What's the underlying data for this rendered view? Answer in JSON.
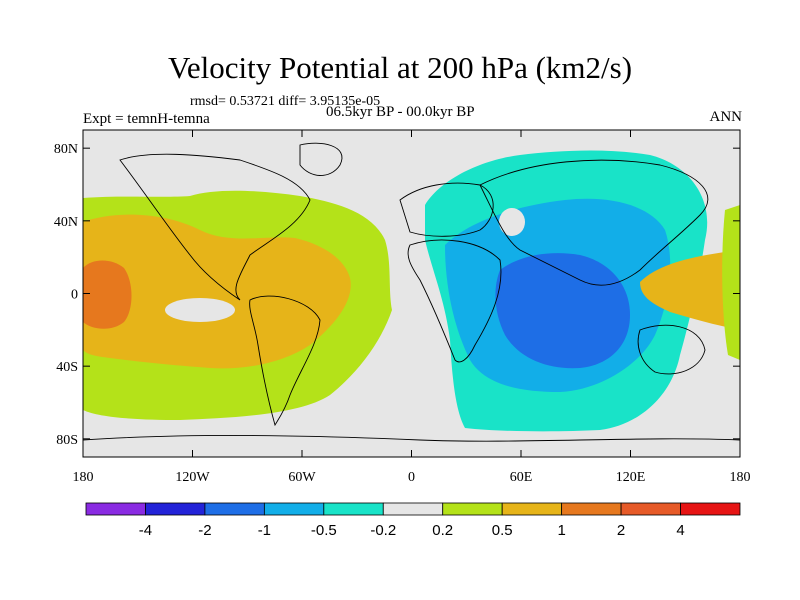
{
  "chart_data": {
    "type": "heatmap",
    "projection": "cylindrical-equidistant global map",
    "title": "Velocity Potential at 200 hPa (km2/s)",
    "subtitle_stats": "rmsd= 0.53721 diff= 3.95135e-05",
    "left_string": "Expt = temnH-temna",
    "center_string": "06.5kyr BP - 00.0kyr BP",
    "right_string": "ANN",
    "lon_range": [
      -180,
      180
    ],
    "lat_range": [
      -90,
      90
    ],
    "x_ticks": [
      {
        "lon": -180,
        "label": "180"
      },
      {
        "lon": -120,
        "label": "120W"
      },
      {
        "lon": -60,
        "label": "60W"
      },
      {
        "lon": 0,
        "label": "0"
      },
      {
        "lon": 60,
        "label": "60E"
      },
      {
        "lon": 120,
        "label": "120E"
      },
      {
        "lon": 180,
        "label": "180"
      }
    ],
    "y_ticks": [
      {
        "lat": 80,
        "label": "80N"
      },
      {
        "lat": 40,
        "label": "40N"
      },
      {
        "lat": 0,
        "label": "0"
      },
      {
        "lat": -40,
        "label": "40S"
      },
      {
        "lat": -80,
        "label": "80S"
      }
    ],
    "colorbar": {
      "levels": [
        "-4",
        "-2",
        "-1",
        "-0.5",
        "-0.2",
        "0.2",
        "0.5",
        "1",
        "2",
        "4"
      ],
      "colors": [
        "#8a2be2",
        "#2323d8",
        "#1e6ee6",
        "#12aee8",
        "#19e3c8",
        "#e6e6e6",
        "#b4e219",
        "#e6b419",
        "#e6781e",
        "#e65a28",
        "#e61414"
      ]
    },
    "regions": [
      {
        "name": "pacific-atlantic-positive",
        "level_range": [
          "0.2",
          "0.5"
        ],
        "color": "#b4e219"
      },
      {
        "name": "americas-atlantic-positive",
        "level_range": [
          "0.5",
          "1"
        ],
        "color": "#e6b419"
      },
      {
        "name": "central-pacific-max",
        "level_range": [
          "1",
          "2"
        ],
        "color": "#e6781e"
      },
      {
        "name": "eastern-hemisphere-negative",
        "level_range": [
          "-0.5",
          "-0.2"
        ],
        "color": "#19e3c8"
      },
      {
        "name": "asia-indian-negative",
        "level_range": [
          "-1",
          "-0.5"
        ],
        "color": "#12aee8"
      },
      {
        "name": "indian-ocean-min",
        "level_range": [
          "-2",
          "-1"
        ],
        "color": "#1e6ee6"
      },
      {
        "name": "west-pacific-positive",
        "level_range": [
          "0.5",
          "1"
        ],
        "color": "#e6b419"
      }
    ]
  }
}
